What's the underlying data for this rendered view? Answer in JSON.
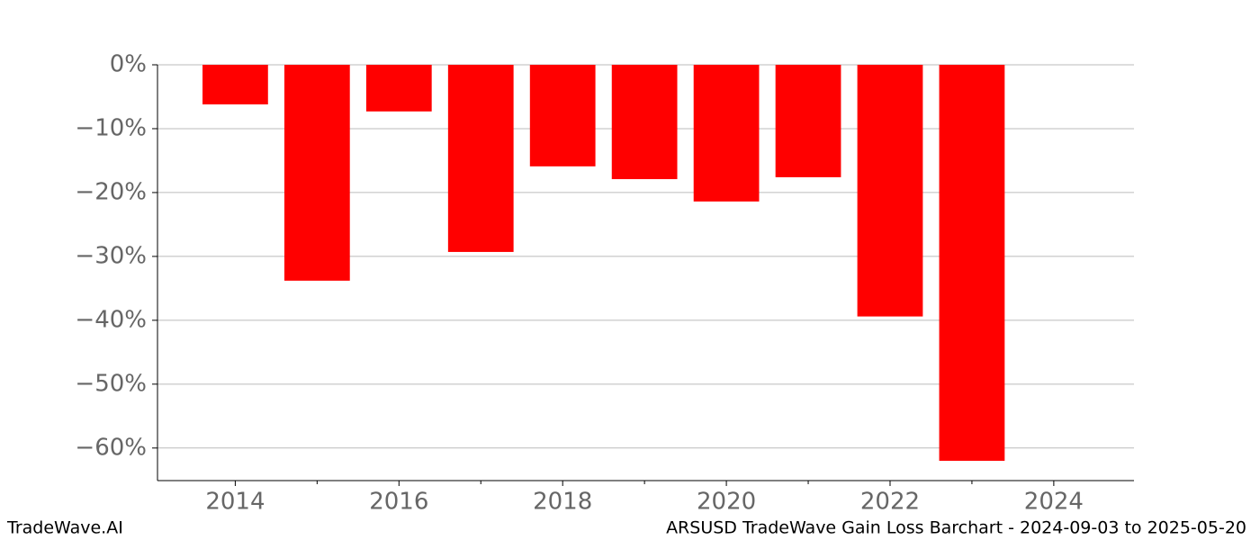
{
  "chart_data": {
    "type": "bar",
    "x": [
      2014,
      2015,
      2016,
      2017,
      2018,
      2019,
      2020,
      2021,
      2022,
      2023
    ],
    "values": [
      -6.2,
      -33.8,
      -7.3,
      -29.3,
      -15.9,
      -17.9,
      -21.4,
      -17.6,
      -39.4,
      -62.0
    ],
    "color": "#ff0000",
    "bar_width": 0.8,
    "xlim": [
      2013.05,
      2024.98
    ],
    "xticks": [
      2014,
      2016,
      2018,
      2020,
      2022,
      2024
    ],
    "xminorticks": [
      2015,
      2017,
      2019,
      2021,
      2023
    ],
    "ylim": [
      -65.1,
      0
    ],
    "yticks": [
      {
        "value": 0,
        "label": "0%"
      },
      {
        "value": -10,
        "label": "−10%"
      },
      {
        "value": -20,
        "label": "−20%"
      },
      {
        "value": -30,
        "label": "−30%"
      },
      {
        "value": -40,
        "label": "−40%"
      },
      {
        "value": -50,
        "label": "−50%"
      },
      {
        "value": -60,
        "label": "−60%"
      }
    ],
    "grid": true,
    "watermark": "TradeWave.AI",
    "title": "ARSUSD TradeWave Gain Loss Barchart - 2024-09-03 to 2025-05-20"
  }
}
